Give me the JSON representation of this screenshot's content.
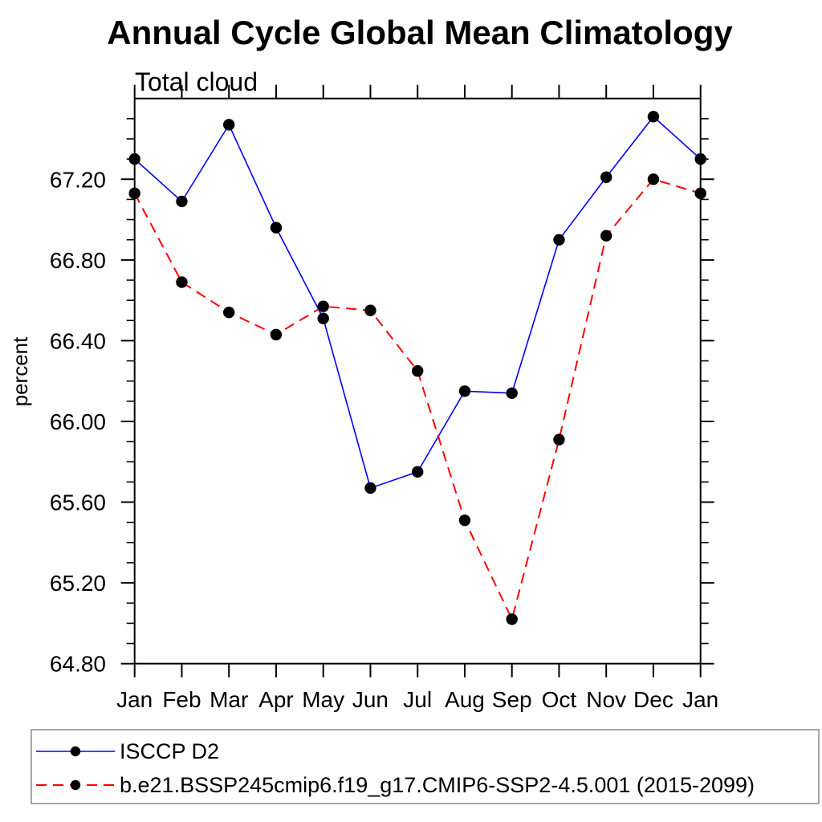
{
  "title": "Annual Cycle Global Mean Climatology",
  "subtitle": "Total cloud",
  "ylabel": "percent",
  "chart_data": {
    "type": "line",
    "categories": [
      "Jan",
      "Feb",
      "Mar",
      "Apr",
      "May",
      "Jun",
      "Jul",
      "Aug",
      "Sep",
      "Oct",
      "Nov",
      "Dec",
      "Jan"
    ],
    "series": [
      {
        "name": "ISCCP D2",
        "color": "#0000ff",
        "line_style": "solid",
        "marker": "filled-circle",
        "marker_color": "#000000",
        "values": [
          67.3,
          67.09,
          67.47,
          66.96,
          66.51,
          65.67,
          65.75,
          66.15,
          66.14,
          66.9,
          67.21,
          67.51,
          67.3
        ]
      },
      {
        "name": "b.e21.BSSP245cmip6.f19_g17.CMIP6-SSP2-4.5.001 (2015-2099)",
        "color": "#ff0000",
        "line_style": "dashed",
        "marker": "filled-circle",
        "marker_color": "#000000",
        "values": [
          67.13,
          66.69,
          66.54,
          66.43,
          66.57,
          66.55,
          66.25,
          65.51,
          65.02,
          65.91,
          66.92,
          67.2,
          67.13
        ]
      }
    ],
    "ylim": [
      64.8,
      67.6
    ],
    "ytick_major_step": 0.4,
    "ytick_minor_step": 0.1,
    "ytick_labels": [
      "64.80",
      "65.20",
      "65.60",
      "66.00",
      "66.40",
      "66.80",
      "67.20"
    ],
    "grid": "off",
    "legend_position": "bottom-left-box"
  }
}
